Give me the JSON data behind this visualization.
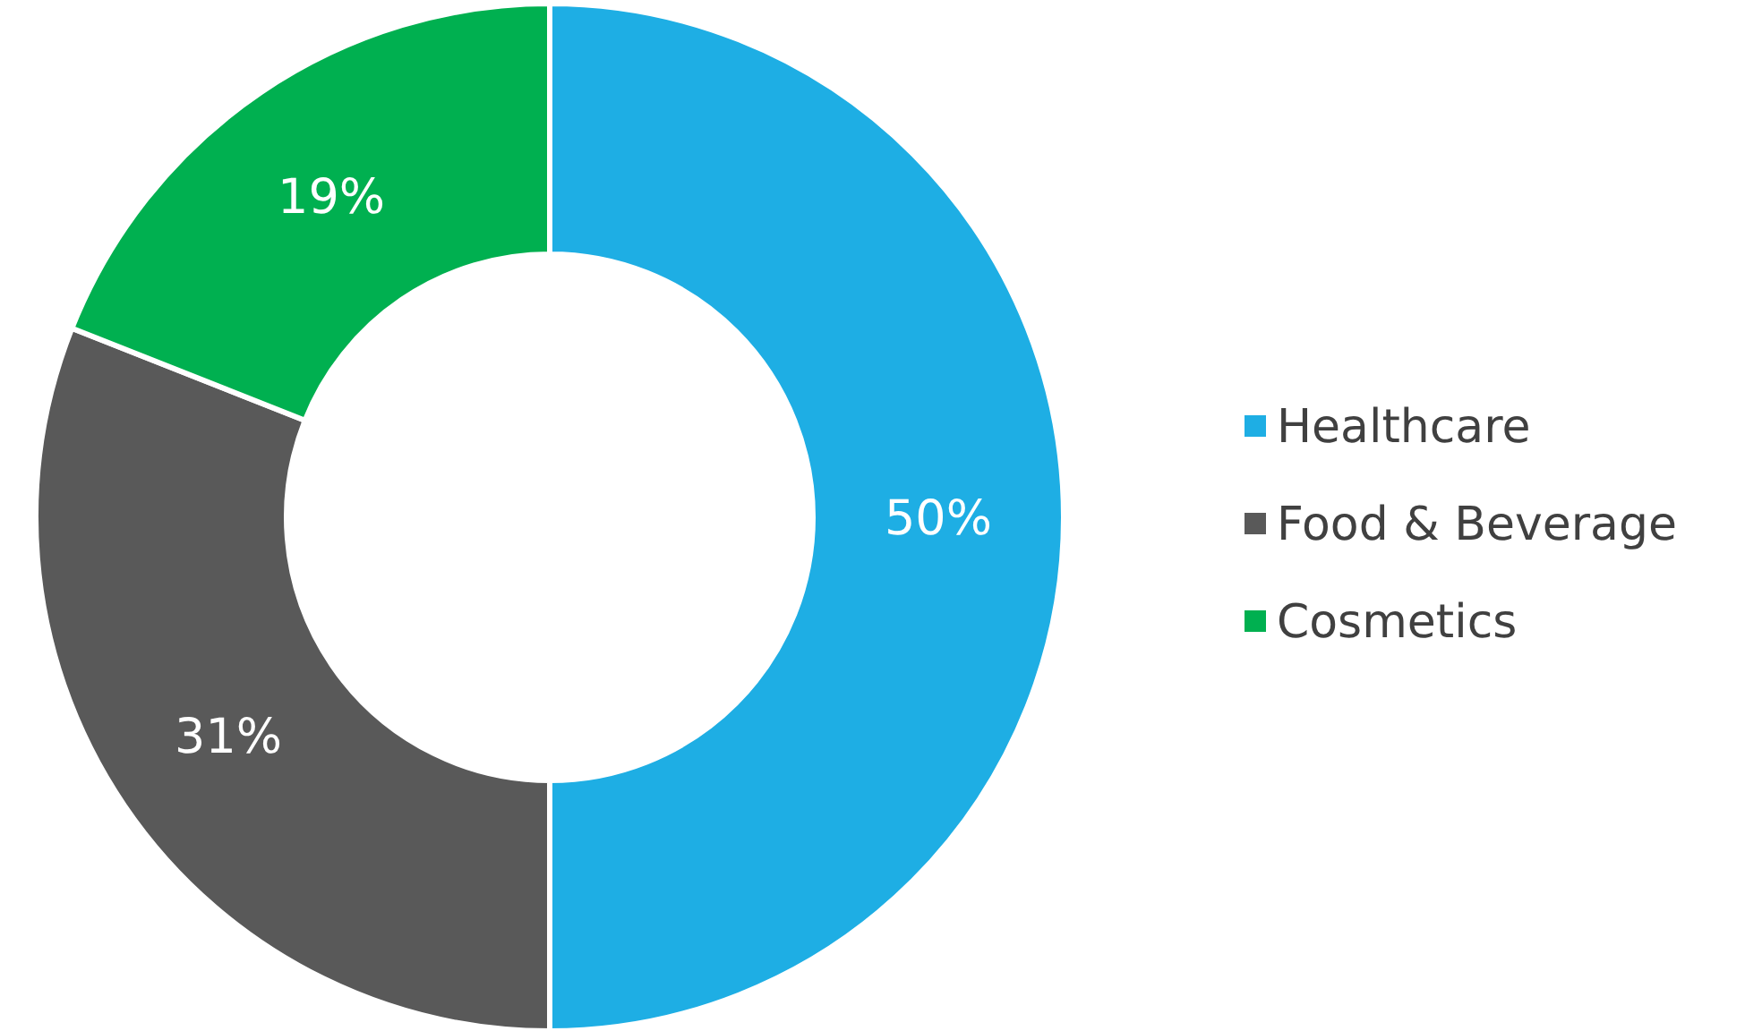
{
  "chart_data": {
    "type": "donut",
    "categories": [
      "Healthcare",
      "Food & Beverage",
      "Cosmetics"
    ],
    "values": [
      50,
      31,
      19
    ],
    "colors": [
      "#1eaee4",
      "#595959",
      "#00b050"
    ],
    "value_labels": [
      "50%",
      "31%",
      "19%"
    ],
    "legend": "right"
  }
}
